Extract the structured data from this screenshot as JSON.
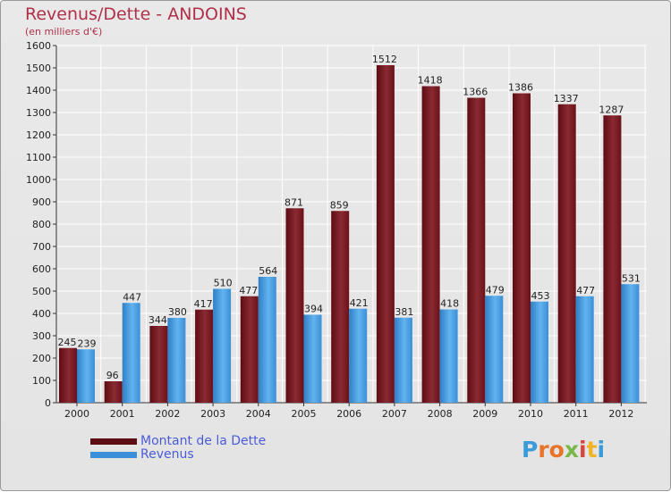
{
  "colors": {
    "debt": "#7a1a22",
    "debt_light": "#8e2a33",
    "revenue": "#3a8fd8",
    "revenue_light": "#5fb1ee",
    "title": "#b0304a",
    "legend_text": "#4a5bd8"
  },
  "header": {
    "title": "Revenus/Dette - ANDOINS",
    "subtitle": "(en milliers d'€)"
  },
  "legend": {
    "items": [
      {
        "label": "Montant de la Dette",
        "color": "#6b0f16"
      },
      {
        "label": "Revenus",
        "color": "#3a8fd8"
      }
    ]
  },
  "logo": {
    "text": "Proxiti",
    "letters": [
      {
        "ch": "P",
        "color": "#3b9bd9"
      },
      {
        "ch": "r",
        "color": "#e8742a"
      },
      {
        "ch": "o",
        "color": "#e8742a"
      },
      {
        "ch": "x",
        "color": "#7ab648"
      },
      {
        "ch": "i",
        "color": "#d9443a"
      },
      {
        "ch": "t",
        "color": "#f0b428"
      },
      {
        "ch": "i",
        "color": "#3b9bd9"
      }
    ]
  },
  "chart_data": {
    "type": "bar",
    "title": "Revenus/Dette - ANDOINS",
    "subtitle": "(en milliers d'€)",
    "categories": [
      "2000",
      "2001",
      "2002",
      "2003",
      "2004",
      "2005",
      "2006",
      "2007",
      "2008",
      "2009",
      "2010",
      "2011",
      "2012"
    ],
    "series": [
      {
        "name": "Montant de la Dette",
        "values": [
          245,
          96,
          344,
          417,
          477,
          871,
          859,
          1512,
          1418,
          1366,
          1386,
          1337,
          1287
        ]
      },
      {
        "name": "Revenus",
        "values": [
          239,
          447,
          380,
          510,
          564,
          394,
          421,
          381,
          418,
          479,
          453,
          477,
          531
        ]
      }
    ],
    "ylim": [
      0,
      1600
    ],
    "yticks": [
      0,
      100,
      200,
      300,
      400,
      500,
      600,
      700,
      800,
      900,
      1000,
      1100,
      1200,
      1300,
      1400,
      1500,
      1600
    ],
    "grid": true,
    "legend_position": "bottom-left"
  }
}
